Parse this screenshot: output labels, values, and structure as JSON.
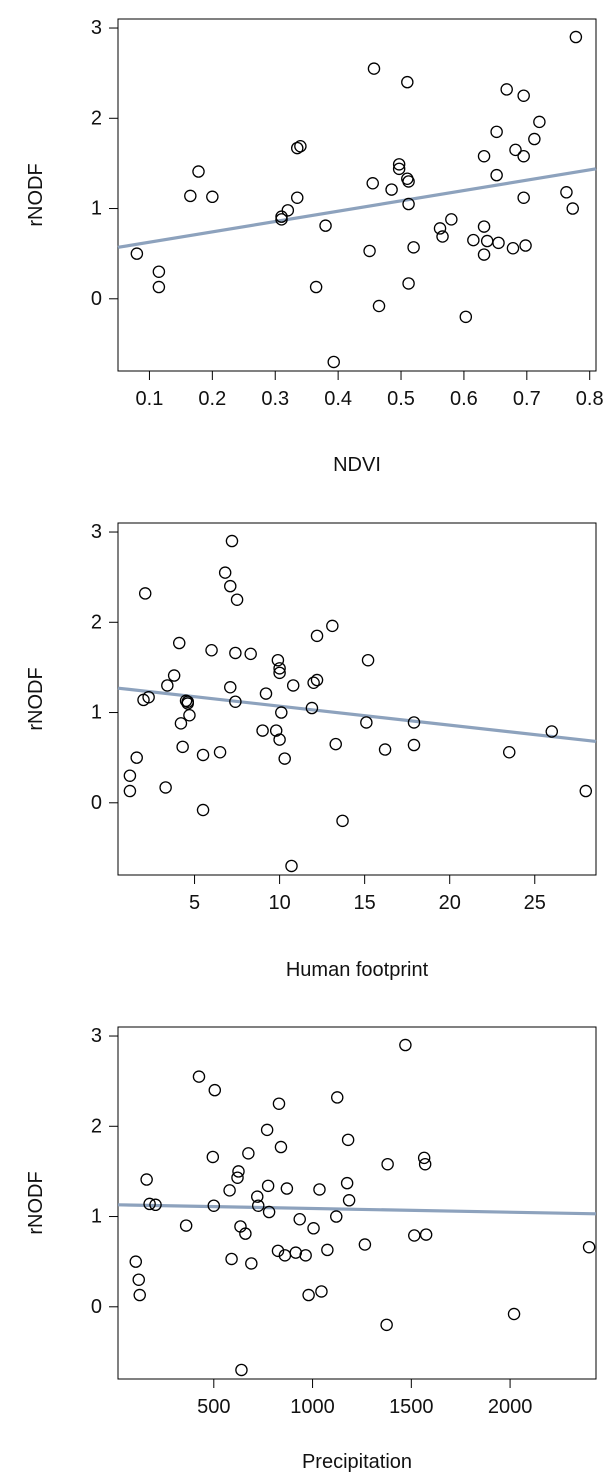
{
  "figure": {
    "line_color": "#8da2bd",
    "point_color": "#000000"
  },
  "chart_data": [
    {
      "type": "scatter",
      "title": "",
      "xlabel": "NDVI",
      "ylabel": "rNODF",
      "xlim": [
        0.05,
        0.81
      ],
      "ylim": [
        -0.8,
        3.1
      ],
      "xticks": [
        0.1,
        0.2,
        0.3,
        0.4,
        0.5,
        0.6,
        0.7,
        0.8
      ],
      "xtick_labels": [
        "0.1",
        "0.2",
        "0.3",
        "0.4",
        "0.5",
        "0.6",
        "0.7",
        "0.8"
      ],
      "yticks": [
        0,
        1,
        2,
        3
      ],
      "ytick_labels": [
        "0",
        "1",
        "2",
        "3"
      ],
      "grid": false,
      "trend": {
        "x0": 0.05,
        "y0": 0.57,
        "x1": 0.81,
        "y1": 1.44
      },
      "points": [
        [
          0.08,
          0.5
        ],
        [
          0.115,
          0.3
        ],
        [
          0.115,
          0.13
        ],
        [
          0.165,
          1.14
        ],
        [
          0.178,
          1.41
        ],
        [
          0.2,
          1.13
        ],
        [
          0.31,
          0.88
        ],
        [
          0.31,
          0.91
        ],
        [
          0.32,
          0.98
        ],
        [
          0.335,
          1.12
        ],
        [
          0.335,
          1.67
        ],
        [
          0.34,
          1.69
        ],
        [
          0.365,
          0.13
        ],
        [
          0.38,
          0.81
        ],
        [
          0.393,
          -0.7
        ],
        [
          0.45,
          0.53
        ],
        [
          0.455,
          1.28
        ],
        [
          0.457,
          2.55
        ],
        [
          0.465,
          -0.08
        ],
        [
          0.485,
          1.21
        ],
        [
          0.497,
          1.49
        ],
        [
          0.497,
          1.44
        ],
        [
          0.51,
          2.4
        ],
        [
          0.51,
          1.33
        ],
        [
          0.512,
          1.3
        ],
        [
          0.512,
          1.05
        ],
        [
          0.512,
          0.17
        ],
        [
          0.52,
          0.57
        ],
        [
          0.562,
          0.78
        ],
        [
          0.566,
          0.69
        ],
        [
          0.58,
          0.88
        ],
        [
          0.603,
          -0.2
        ],
        [
          0.615,
          0.65
        ],
        [
          0.632,
          1.58
        ],
        [
          0.632,
          0.8
        ],
        [
          0.632,
          0.49
        ],
        [
          0.637,
          0.64
        ],
        [
          0.652,
          1.37
        ],
        [
          0.652,
          1.85
        ],
        [
          0.655,
          0.62
        ],
        [
          0.668,
          2.32
        ],
        [
          0.678,
          0.56
        ],
        [
          0.682,
          1.65
        ],
        [
          0.695,
          2.25
        ],
        [
          0.695,
          1.58
        ],
        [
          0.695,
          1.12
        ],
        [
          0.698,
          0.59
        ],
        [
          0.712,
          1.77
        ],
        [
          0.72,
          1.96
        ],
        [
          0.763,
          1.18
        ],
        [
          0.773,
          1.0
        ],
        [
          0.778,
          2.9
        ]
      ]
    },
    {
      "type": "scatter",
      "title": "",
      "xlabel": "Human footprint",
      "ylabel": "rNODF",
      "xlim": [
        0.5,
        28.6
      ],
      "ylim": [
        -0.8,
        3.1
      ],
      "xticks": [
        5,
        10,
        15,
        20,
        25
      ],
      "xtick_labels": [
        "5",
        "10",
        "15",
        "20",
        "25"
      ],
      "yticks": [
        0,
        1,
        2,
        3
      ],
      "ytick_labels": [
        "0",
        "1",
        "2",
        "3"
      ],
      "grid": false,
      "trend": {
        "x0": 0.5,
        "y0": 1.27,
        "x1": 28.6,
        "y1": 0.68
      },
      "points": [
        [
          1.2,
          0.3
        ],
        [
          1.2,
          0.13
        ],
        [
          1.6,
          0.5
        ],
        [
          2.0,
          1.14
        ],
        [
          2.1,
          2.32
        ],
        [
          2.3,
          1.17
        ],
        [
          3.3,
          0.17
        ],
        [
          3.4,
          1.3
        ],
        [
          3.8,
          1.41
        ],
        [
          4.1,
          1.77
        ],
        [
          4.2,
          0.88
        ],
        [
          4.3,
          0.62
        ],
        [
          4.5,
          1.13
        ],
        [
          4.6,
          1.12
        ],
        [
          4.6,
          1.1
        ],
        [
          4.7,
          0.97
        ],
        [
          5.5,
          0.53
        ],
        [
          5.5,
          -0.08
        ],
        [
          6.0,
          1.69
        ],
        [
          6.5,
          0.56
        ],
        [
          6.8,
          2.55
        ],
        [
          7.1,
          2.4
        ],
        [
          7.1,
          1.28
        ],
        [
          7.2,
          2.9
        ],
        [
          7.4,
          1.12
        ],
        [
          7.4,
          1.66
        ],
        [
          7.5,
          2.25
        ],
        [
          8.3,
          1.65
        ],
        [
          9.0,
          0.8
        ],
        [
          9.2,
          1.21
        ],
        [
          9.8,
          0.8
        ],
        [
          9.9,
          1.58
        ],
        [
          10.0,
          1.49
        ],
        [
          10.0,
          1.44
        ],
        [
          10.0,
          0.7
        ],
        [
          10.1,
          1.0
        ],
        [
          10.3,
          0.49
        ],
        [
          10.7,
          -0.7
        ],
        [
          10.8,
          1.3
        ],
        [
          11.9,
          1.05
        ],
        [
          12.0,
          1.33
        ],
        [
          12.2,
          1.36
        ],
        [
          12.2,
          1.85
        ],
        [
          13.1,
          1.96
        ],
        [
          13.3,
          0.65
        ],
        [
          13.7,
          -0.2
        ],
        [
          15.1,
          0.89
        ],
        [
          15.2,
          1.58
        ],
        [
          16.2,
          0.59
        ],
        [
          17.9,
          0.89
        ],
        [
          17.9,
          0.64
        ],
        [
          23.5,
          0.56
        ],
        [
          26.0,
          0.79
        ],
        [
          28.0,
          0.13
        ]
      ]
    },
    {
      "type": "scatter",
      "title": "",
      "xlabel": "Precipitation",
      "ylabel": "rNODF",
      "xlim": [
        15,
        2435
      ],
      "ylim": [
        -0.8,
        3.1
      ],
      "xticks": [
        500,
        1000,
        1500,
        2000
      ],
      "xtick_labels": [
        "500",
        "1000",
        "1500",
        "2000"
      ],
      "yticks": [
        0,
        1,
        2,
        3
      ],
      "ytick_labels": [
        "0",
        "1",
        "2",
        "3"
      ],
      "grid": false,
      "trend": {
        "x0": 15,
        "y0": 1.13,
        "x1": 2435,
        "y1": 1.03
      },
      "points": [
        [
          105,
          0.5
        ],
        [
          120,
          0.3
        ],
        [
          125,
          0.13
        ],
        [
          160,
          1.41
        ],
        [
          175,
          1.14
        ],
        [
          205,
          1.13
        ],
        [
          360,
          0.9
        ],
        [
          425,
          2.55
        ],
        [
          495,
          1.66
        ],
        [
          500,
          1.12
        ],
        [
          505,
          2.4
        ],
        [
          580,
          1.29
        ],
        [
          590,
          0.53
        ],
        [
          620,
          1.43
        ],
        [
          625,
          1.5
        ],
        [
          635,
          0.89
        ],
        [
          640,
          -0.7
        ],
        [
          660,
          0.81
        ],
        [
          675,
          1.7
        ],
        [
          690,
          0.48
        ],
        [
          720,
          1.22
        ],
        [
          725,
          1.12
        ],
        [
          770,
          1.96
        ],
        [
          775,
          1.34
        ],
        [
          780,
          1.05
        ],
        [
          825,
          0.62
        ],
        [
          830,
          2.25
        ],
        [
          840,
          1.77
        ],
        [
          860,
          0.57
        ],
        [
          870,
          1.31
        ],
        [
          915,
          0.6
        ],
        [
          935,
          0.97
        ],
        [
          965,
          0.57
        ],
        [
          980,
          0.13
        ],
        [
          1005,
          0.87
        ],
        [
          1035,
          1.3
        ],
        [
          1045,
          0.17
        ],
        [
          1075,
          0.63
        ],
        [
          1120,
          1.0
        ],
        [
          1125,
          2.32
        ],
        [
          1175,
          1.37
        ],
        [
          1180,
          1.85
        ],
        [
          1185,
          1.18
        ],
        [
          1265,
          0.69
        ],
        [
          1375,
          -0.2
        ],
        [
          1380,
          1.58
        ],
        [
          1470,
          2.9
        ],
        [
          1515,
          0.79
        ],
        [
          1565,
          1.65
        ],
        [
          1570,
          1.58
        ],
        [
          1575,
          0.8
        ],
        [
          2020,
          -0.08
        ],
        [
          2400,
          0.66
        ]
      ]
    }
  ]
}
